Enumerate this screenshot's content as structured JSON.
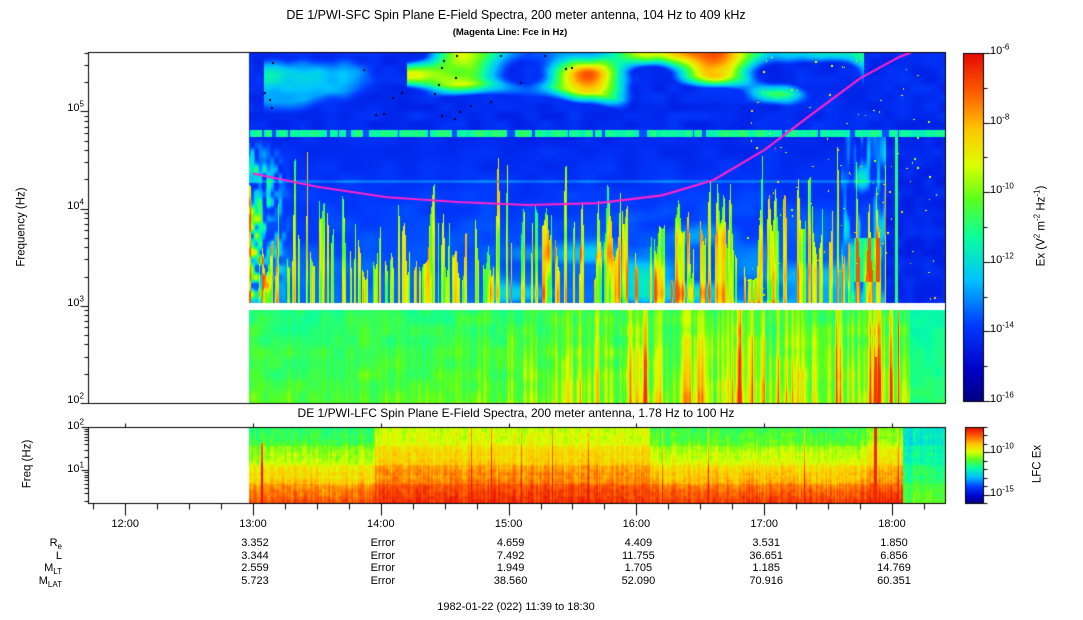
{
  "figure": {
    "caption": "1982-01-22 (022) 11:39 to 18:30",
    "background": "#FFFFFF",
    "data_start": "12:58"
  },
  "chart_data": [
    {
      "type": "heatmap",
      "id": "sfc-spectrogram",
      "title": "DE 1/PWI-SFC  Spin Plane E-Field Spectra, 200 meter antenna, 104 Hz to 409 kHz",
      "subtitle": "(Magenta Line: Fce in Hz)",
      "ylabel": "Frequency (Hz)",
      "yticks": [
        "10^5",
        "10^4",
        "10^3",
        "10^2"
      ],
      "ytick_exponents": [
        5,
        4,
        3,
        2
      ],
      "y_range_hz": [
        100,
        409000
      ],
      "x_axis": {
        "start": "11:39",
        "end": "18:30",
        "tick_labels": [
          "12:00",
          "13:00",
          "14:00",
          "15:00",
          "16:00",
          "17:00",
          "18:00"
        ]
      },
      "colormap": "jet",
      "no_data_region": "left of 12:58 is blank (white)",
      "white_gap_band_hz": [
        900,
        1070
      ],
      "colorbar": {
        "label": "Ex (V^2 m^-2 Hz^-1)",
        "tick_labels": [
          "10^-6",
          "10^-8",
          "10^-10",
          "10^-12",
          "10^-14",
          "10^-16"
        ],
        "labeled_exponents": [
          -6,
          -8,
          -10,
          -12,
          -14,
          -16
        ],
        "range_exponents": [
          -6,
          -16
        ],
        "top_color": "#DC0000",
        "bottom_color": "#00008B"
      },
      "fce_line": {
        "name": "Fce (electron cyclotron frequency)",
        "color": "#FF22CC",
        "points_hour_hz": [
          [
            13.0,
            23000
          ],
          [
            13.5,
            16800
          ],
          [
            14.05,
            13100
          ],
          [
            14.6,
            11700
          ],
          [
            15.15,
            10900
          ],
          [
            15.7,
            11400
          ],
          [
            16.2,
            13700
          ],
          [
            16.6,
            19600
          ],
          [
            17.0,
            40000
          ],
          [
            17.35,
            89000
          ],
          [
            17.75,
            219000
          ],
          [
            18.05,
            360000
          ],
          [
            18.2,
            430000
          ]
        ]
      }
    },
    {
      "type": "heatmap",
      "id": "lfc-spectrogram",
      "title": "DE 1/PWI-LFC  Spin Plane E-Field Spectra, 200 meter antenna, 1.78 Hz to 100 Hz",
      "ylabel": "Freq (Hz)",
      "yticks": [
        "10^2",
        "10^1"
      ],
      "ytick_exponents": [
        2,
        1
      ],
      "y_range_hz": [
        1.78,
        100
      ],
      "colormap": "jet",
      "colorbar": {
        "label": "LFC Ex",
        "tick_labels": [
          "10^-10",
          "10^-15"
        ],
        "labeled_exponents": [
          -10,
          -15
        ],
        "range_exponents": [
          -7,
          -16
        ]
      }
    }
  ],
  "ephemeris_table": {
    "columns": [
      "13:00",
      "14:00",
      "15:00",
      "16:00",
      "17:00",
      "18:00"
    ],
    "rows": [
      {
        "label": "R_e",
        "values": [
          "3.352",
          "Error",
          "4.659",
          "4.409",
          "3.531",
          "1.850"
        ]
      },
      {
        "label": "L",
        "values": [
          "3.344",
          "Error",
          "7.492",
          "11.755",
          "36.651",
          "6.856"
        ]
      },
      {
        "label": "M_LT",
        "values": [
          "2.559",
          "Error",
          "1.949",
          "1.705",
          "1.185",
          "14.769"
        ]
      },
      {
        "label": "M_LAT",
        "values": [
          "5.723",
          "Error",
          "38.560",
          "52.090",
          "70.916",
          "60.351"
        ]
      }
    ]
  }
}
